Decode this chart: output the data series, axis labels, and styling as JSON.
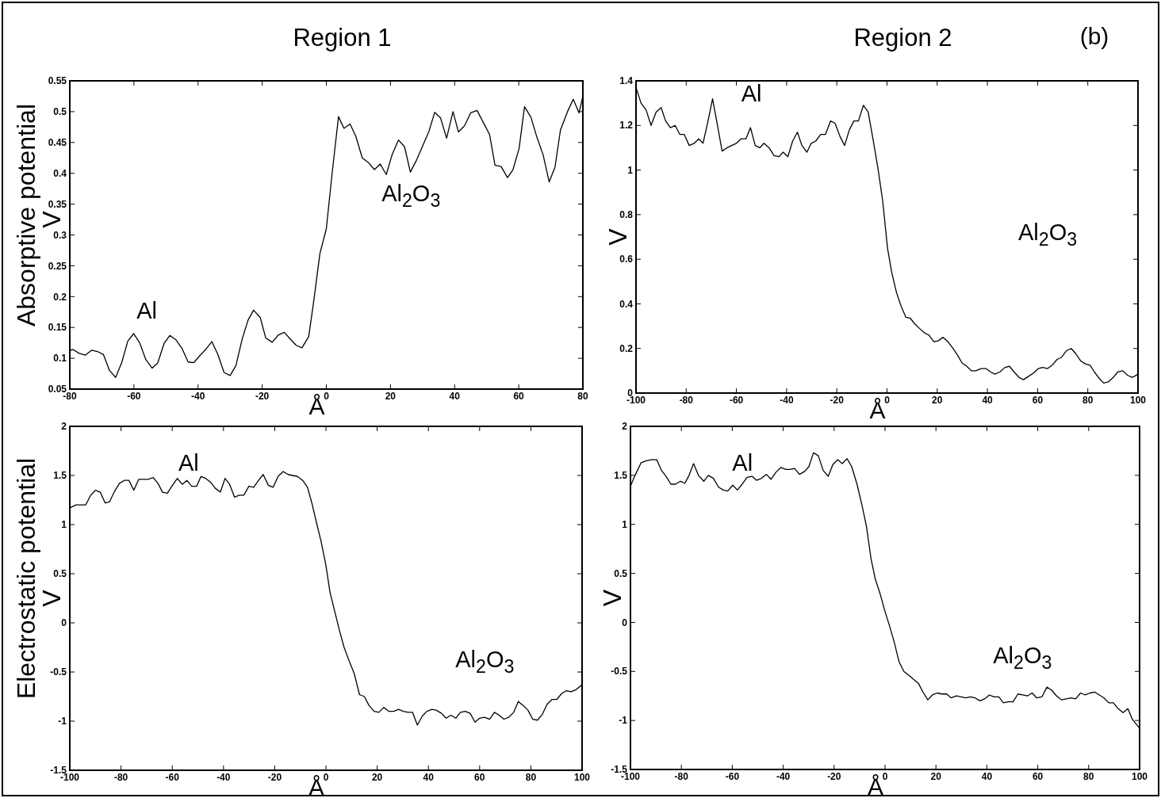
{
  "chart_data": [
    {
      "type": "line",
      "title": "Region 1",
      "xlabel": "Å",
      "ylabel": "V",
      "xlim": [
        -80,
        80
      ],
      "xticks": [
        -80,
        -60,
        -40,
        -20,
        0,
        20,
        40,
        60,
        80
      ],
      "ylim": [
        0.05,
        0.55
      ],
      "yticks": [
        0.05,
        0.1,
        0.15,
        0.2,
        0.25,
        0.3,
        0.35,
        0.4,
        0.45,
        0.5,
        0.55
      ],
      "x": [
        -80,
        -78.9,
        -77.1,
        -75.2,
        -73.2,
        -71.4,
        -69.5,
        -67.6,
        -65.7,
        -63.8,
        -61.9,
        -60.1,
        -58.2,
        -56.3,
        -54.3,
        -52.6,
        -50.6,
        -48.8,
        -46.9,
        -45,
        -43.1,
        -41.3,
        -39.5,
        -37.5,
        -35.7,
        -33.8,
        -31.9,
        -30,
        -28.2,
        -26.2,
        -24.4,
        -22.7,
        -20.6,
        -18.9,
        -16.9,
        -14.9,
        -13.1,
        -11.2,
        -9.4,
        -7.6,
        -5.5,
        -4,
        -2,
        0,
        1.8,
        3.8,
        5.5,
        7.4,
        9.2,
        11.2,
        13,
        15,
        16.8,
        18.7,
        20.5,
        22.5,
        24.4,
        26.2,
        28,
        30,
        32,
        33.8,
        35.6,
        37.5,
        39.5,
        41.2,
        43.1,
        45,
        47,
        48.9,
        50.9,
        52.6,
        54.5,
        56.5,
        58.2,
        60.1,
        61.8,
        63.8,
        65.7,
        67.6,
        69.5,
        71.3,
        73,
        75.2,
        77,
        78.8,
        80
      ],
      "series": [
        {
          "color": "#000000",
          "values": [
            0.113,
            0.114,
            0.108,
            0.105,
            0.113,
            0.111,
            0.106,
            0.08,
            0.069,
            0.093,
            0.128,
            0.14,
            0.125,
            0.098,
            0.084,
            0.092,
            0.124,
            0.137,
            0.13,
            0.116,
            0.094,
            0.093,
            0.104,
            0.115,
            0.127,
            0.106,
            0.077,
            0.072,
            0.088,
            0.132,
            0.162,
            0.178,
            0.166,
            0.133,
            0.126,
            0.138,
            0.142,
            0.131,
            0.121,
            0.117,
            0.135,
            0.19,
            0.27,
            0.31,
            0.4,
            0.492,
            0.473,
            0.48,
            0.46,
            0.425,
            0.418,
            0.406,
            0.415,
            0.398,
            0.43,
            0.454,
            0.443,
            0.402,
            0.42,
            0.444,
            0.468,
            0.499,
            0.49,
            0.457,
            0.5,
            0.467,
            0.477,
            0.498,
            0.502,
            0.483,
            0.463,
            0.413,
            0.411,
            0.393,
            0.406,
            0.44,
            0.508,
            0.491,
            0.458,
            0.43,
            0.386,
            0.41,
            0.47,
            0.5,
            0.52,
            0.498,
            0.525
          ]
        }
      ],
      "annotations": [
        "Absorptive potential",
        "Al",
        "Al$_{2}$O$_{3}$"
      ]
    },
    {
      "type": "line",
      "title": "Region 2",
      "xlabel": "Å",
      "ylabel": "V",
      "xlim": [
        -100,
        100
      ],
      "xticks": [
        -100,
        -80,
        -60,
        -40,
        -20,
        0,
        20,
        40,
        60,
        80,
        100
      ],
      "ylim": [
        0,
        1.4
      ],
      "yticks": [
        0,
        0.2,
        0.4,
        0.6,
        0.8,
        1,
        1.2,
        1.4
      ],
      "x": [
        -100,
        -98,
        -96,
        -94,
        -92,
        -90,
        -88.2,
        -86.3,
        -84.4,
        -82.6,
        -80.8,
        -78.8,
        -76.8,
        -75,
        -73.3,
        -71.3,
        -69.5,
        -67.7,
        -65.7,
        -63.7,
        -61.9,
        -60,
        -58.2,
        -56.2,
        -54.4,
        -52.5,
        -50.7,
        -49,
        -47,
        -45,
        -43,
        -41.4,
        -39.5,
        -37.6,
        -35.7,
        -33.9,
        -31.9,
        -30.2,
        -28.4,
        -26.4,
        -24.5,
        -22.5,
        -20.7,
        -18.7,
        -16.9,
        -15,
        -13.2,
        -11.4,
        -9.4,
        -7.5,
        -5.6,
        -3.5,
        -1.7,
        0.2,
        1.9,
        3.8,
        5.6,
        7.5,
        9.3,
        11.1,
        12.9,
        14.9,
        16.7,
        18.7,
        20.5,
        22.3,
        24.3,
        26.3,
        28.1,
        29.9,
        31.8,
        33.6,
        35.4,
        37.5,
        39.4,
        41.2,
        43,
        45,
        47,
        48.8,
        50.6,
        52.6,
        54.4,
        56.4,
        58.4,
        60.3,
        62,
        64,
        65.8,
        67.7,
        69.5,
        71.5,
        73.4,
        75.3,
        77.1,
        79.1,
        80.9,
        82.6,
        84.6,
        86.3,
        88.2,
        90.1,
        92,
        93.9,
        95.8,
        97.8,
        100
      ],
      "series": [
        {
          "color": "#000000",
          "values": [
            1.37,
            1.3,
            1.27,
            1.2,
            1.26,
            1.28,
            1.22,
            1.19,
            1.2,
            1.16,
            1.16,
            1.11,
            1.12,
            1.14,
            1.12,
            1.22,
            1.32,
            1.21,
            1.085,
            1.1,
            1.11,
            1.12,
            1.14,
            1.14,
            1.19,
            1.11,
            1.1,
            1.12,
            1.1,
            1.065,
            1.06,
            1.08,
            1.06,
            1.13,
            1.17,
            1.11,
            1.08,
            1.12,
            1.13,
            1.16,
            1.16,
            1.22,
            1.21,
            1.15,
            1.11,
            1.18,
            1.22,
            1.22,
            1.29,
            1.26,
            1.14,
            1,
            0.86,
            0.65,
            0.54,
            0.45,
            0.39,
            0.34,
            0.335,
            0.31,
            0.29,
            0.27,
            0.26,
            0.23,
            0.235,
            0.25,
            0.23,
            0.2,
            0.17,
            0.135,
            0.12,
            0.1,
            0.1,
            0.11,
            0.11,
            0.095,
            0.085,
            0.095,
            0.115,
            0.12,
            0.095,
            0.07,
            0.06,
            0.075,
            0.09,
            0.11,
            0.115,
            0.11,
            0.125,
            0.15,
            0.16,
            0.19,
            0.2,
            0.175,
            0.145,
            0.13,
            0.125,
            0.095,
            0.065,
            0.045,
            0.05,
            0.07,
            0.095,
            0.1,
            0.08,
            0.07,
            0.085
          ]
        }
      ],
      "annotations": [
        "(b)",
        "Al",
        "Al$_{2}$O$_{3}$"
      ]
    },
    {
      "type": "line",
      "xlabel": "Å",
      "ylabel": "V",
      "xlim": [
        -100,
        100
      ],
      "xticks": [
        -100,
        -80,
        -60,
        -40,
        -20,
        0,
        20,
        40,
        60,
        80,
        100
      ],
      "ylim": [
        -1.5,
        2
      ],
      "yticks": [
        -1.5,
        -1,
        -0.5,
        0,
        0.5,
        1,
        1.5,
        2
      ],
      "x": [
        -100,
        -97.6,
        -95.6,
        -93.8,
        -91.8,
        -90,
        -88.1,
        -86.2,
        -84.5,
        -82.5,
        -80.6,
        -78.7,
        -76.9,
        -75,
        -73.1,
        -71.3,
        -69.4,
        -67.5,
        -65.6,
        -63.8,
        -61.9,
        -59.9,
        -58,
        -56.1,
        -54.3,
        -52.4,
        -50.5,
        -48.8,
        -46.9,
        -45,
        -43.2,
        -41.2,
        -39.4,
        -37.6,
        -35.7,
        -33.8,
        -32,
        -30.1,
        -28.2,
        -26.3,
        -24.5,
        -22.5,
        -20.6,
        -18.7,
        -16.7,
        -14.8,
        -13,
        -11.1,
        -9.1,
        -7.2,
        -5.5,
        -3.7,
        -1.9,
        -0.1,
        1.6,
        3.4,
        5.2,
        7.1,
        9.1,
        11.1,
        13.1,
        15,
        16.8,
        18.8,
        20.7,
        22.6,
        24.5,
        26.5,
        28.3,
        30.2,
        32.1,
        33.8,
        35.7,
        37.6,
        39.4,
        41.4,
        43.2,
        45.1,
        46.9,
        48.8,
        50.7,
        52.5,
        54.4,
        56.3,
        58.2,
        60,
        61.9,
        63.9,
        65.8,
        67.6,
        69.5,
        71.4,
        73.3,
        75.1,
        77,
        78.9,
        80.7,
        82.6,
        84.5,
        86.3,
        88.2,
        90.1,
        92,
        93.9,
        95.7,
        97.6,
        100
      ],
      "series": [
        {
          "color": "#000000",
          "values": [
            1.17,
            1.2,
            1.2,
            1.2,
            1.3,
            1.35,
            1.33,
            1.22,
            1.23,
            1.34,
            1.42,
            1.45,
            1.45,
            1.35,
            1.46,
            1.46,
            1.46,
            1.48,
            1.42,
            1.33,
            1.32,
            1.4,
            1.47,
            1.41,
            1.45,
            1.39,
            1.39,
            1.49,
            1.47,
            1.43,
            1.37,
            1.33,
            1.47,
            1.41,
            1.28,
            1.3,
            1.3,
            1.39,
            1.38,
            1.45,
            1.51,
            1.4,
            1.38,
            1.49,
            1.54,
            1.51,
            1.5,
            1.49,
            1.45,
            1.38,
            1.22,
            1.02,
            0.83,
            0.6,
            0.31,
            0.12,
            -0.07,
            -0.25,
            -0.39,
            -0.52,
            -0.73,
            -0.75,
            -0.84,
            -0.9,
            -0.91,
            -0.86,
            -0.9,
            -0.9,
            -0.88,
            -0.9,
            -0.91,
            -0.91,
            -1.04,
            -0.95,
            -0.9,
            -0.88,
            -0.89,
            -0.92,
            -0.97,
            -0.94,
            -0.97,
            -0.91,
            -0.9,
            -0.92,
            -1.01,
            -0.97,
            -0.96,
            -0.98,
            -0.91,
            -0.94,
            -0.98,
            -0.96,
            -0.91,
            -0.8,
            -0.84,
            -0.89,
            -0.98,
            -0.99,
            -0.93,
            -0.83,
            -0.78,
            -0.78,
            -0.72,
            -0.69,
            -0.7,
            -0.68,
            -0.63
          ]
        }
      ],
      "annotations": [
        "Electrostatic potential",
        "Al",
        "Al$_{2}$O$_{3}$"
      ]
    },
    {
      "type": "line",
      "xlabel": "Å",
      "ylabel": "V",
      "xlim": [
        -100,
        100
      ],
      "xticks": [
        -100,
        -80,
        -60,
        -40,
        -20,
        0,
        20,
        40,
        60,
        80,
        100
      ],
      "ylim": [
        -1.5,
        2
      ],
      "yticks": [
        -1.5,
        -1,
        -0.5,
        0,
        0.5,
        1,
        1.5,
        2
      ],
      "x": [
        -100,
        -98.2,
        -95.8,
        -93.7,
        -91.7,
        -89.7,
        -87.8,
        -86,
        -84.1,
        -82.3,
        -80.4,
        -78.6,
        -77,
        -75.2,
        -73.3,
        -71.2,
        -69.4,
        -67.4,
        -65.4,
        -63.5,
        -61.8,
        -59.8,
        -58,
        -56.1,
        -54.2,
        -52.2,
        -50.5,
        -48.5,
        -46.6,
        -44.8,
        -42.9,
        -40.9,
        -39,
        -37.3,
        -35.5,
        -33.6,
        -31.6,
        -29.9,
        -28.1,
        -26.2,
        -24.3,
        -22.3,
        -20.5,
        -18.6,
        -16.8,
        -14.9,
        -13.1,
        -11,
        -9.1,
        -7.3,
        -5.5,
        -3.8,
        -1.9,
        -0.1,
        1.7,
        3.6,
        5.5,
        7.4,
        9.4,
        11.2,
        13.1,
        14.9,
        16.8,
        18.6,
        20.5,
        22.3,
        24.2,
        26,
        28,
        29.9,
        31.7,
        33.6,
        35.4,
        37.3,
        39.1,
        41,
        42.8,
        44.7,
        46.5,
        48.4,
        50.3,
        52.2,
        54.1,
        55.9,
        57.8,
        59.6,
        61.6,
        63.6,
        65.4,
        67.4,
        69.4,
        71.2,
        73.1,
        74.9,
        76.8,
        78.6,
        80.5,
        82.3,
        84.2,
        86,
        87.9,
        89.7,
        91.6,
        93.5,
        95.4,
        97.2,
        100
      ],
      "series": [
        {
          "color": "#000000",
          "values": [
            1.39,
            1.5,
            1.63,
            1.65,
            1.66,
            1.66,
            1.55,
            1.49,
            1.41,
            1.41,
            1.44,
            1.42,
            1.5,
            1.62,
            1.5,
            1.44,
            1.5,
            1.47,
            1.38,
            1.35,
            1.34,
            1.4,
            1.35,
            1.41,
            1.48,
            1.49,
            1.45,
            1.47,
            1.51,
            1.46,
            1.53,
            1.58,
            1.56,
            1.56,
            1.57,
            1.51,
            1.54,
            1.59,
            1.73,
            1.7,
            1.55,
            1.49,
            1.61,
            1.66,
            1.62,
            1.67,
            1.59,
            1.41,
            1.2,
            0.98,
            0.65,
            0.44,
            0.29,
            0.12,
            -0.03,
            -0.2,
            -0.4,
            -0.5,
            -0.54,
            -0.58,
            -0.62,
            -0.71,
            -0.79,
            -0.74,
            -0.72,
            -0.73,
            -0.73,
            -0.77,
            -0.75,
            -0.76,
            -0.77,
            -0.76,
            -0.77,
            -0.8,
            -0.78,
            -0.74,
            -0.76,
            -0.76,
            -0.82,
            -0.81,
            -0.81,
            -0.73,
            -0.74,
            -0.75,
            -0.72,
            -0.77,
            -0.76,
            -0.66,
            -0.69,
            -0.75,
            -0.79,
            -0.78,
            -0.77,
            -0.78,
            -0.72,
            -0.74,
            -0.72,
            -0.71,
            -0.74,
            -0.77,
            -0.82,
            -0.82,
            -0.88,
            -0.92,
            -0.88,
            -0.99,
            -1.08
          ]
        }
      ],
      "annotations": [
        "Al",
        "Al$_{2}$O$_{3}$"
      ]
    }
  ]
}
